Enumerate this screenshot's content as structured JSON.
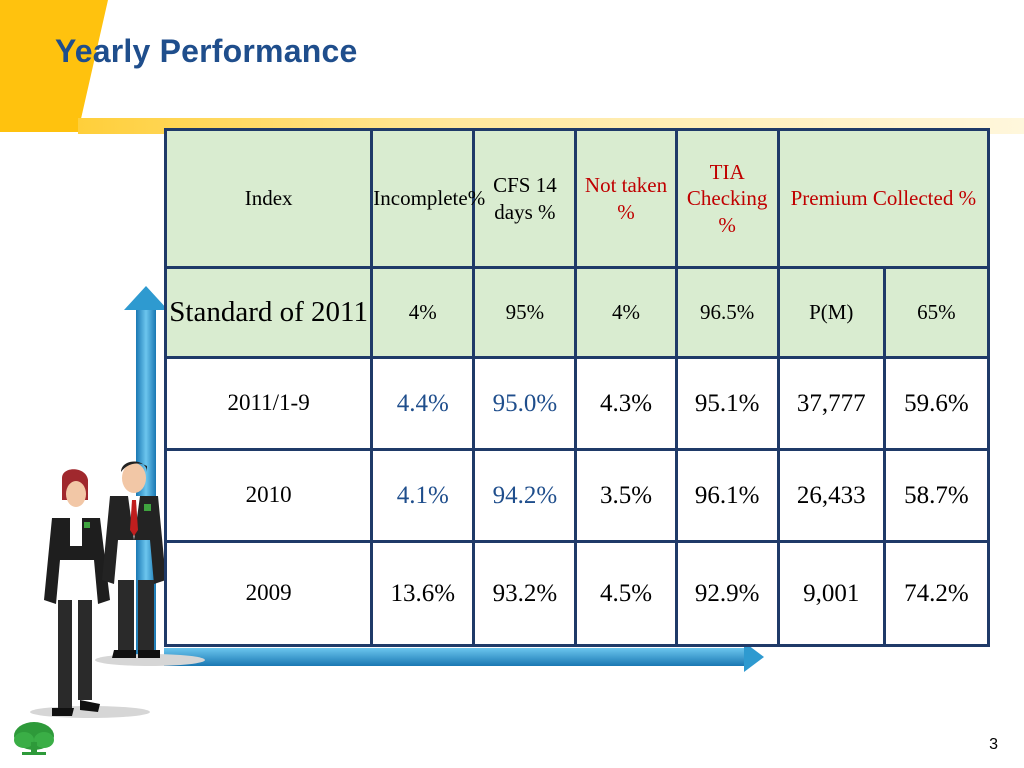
{
  "slide": {
    "title": "Yearly Performance",
    "page_number": "3"
  },
  "table": {
    "headers": [
      "Index",
      "Incomplete%",
      "CFS 14 days %",
      "Not taken %",
      "TIA Checking %",
      "Premium Collected %"
    ],
    "standard_row": [
      "Standard of 2011",
      "4%",
      "95%",
      "4%",
      "96.5%",
      "P(M)",
      "65%"
    ],
    "rows": [
      [
        "2011/1-9",
        "4.4%",
        "95.0%",
        "4.3%",
        "95.1%",
        "37,777",
        "59.6%"
      ],
      [
        "2010",
        "4.1%",
        "94.2%",
        "3.5%",
        "96.1%",
        "26,433",
        "58.7%"
      ],
      [
        "2009",
        "13.6%",
        "93.2%",
        "4.5%",
        "92.9%",
        "9,001",
        "74.2%"
      ]
    ]
  },
  "colors": {
    "title": "#1f4e8c",
    "header_fill": "#d9ecd0",
    "border": "#1f3a68",
    "highlight_blue": "#1f4e8c",
    "header_red": "#c00000",
    "accent_yellow": "#ffc20e",
    "arrow_blue": "#2e9ad0",
    "up_arrow_orange": "#f07a18"
  },
  "icons": [
    "tree-logo-icon",
    "up-arrow-icon",
    "axis-arrow-icon",
    "business-people-illustration"
  ]
}
